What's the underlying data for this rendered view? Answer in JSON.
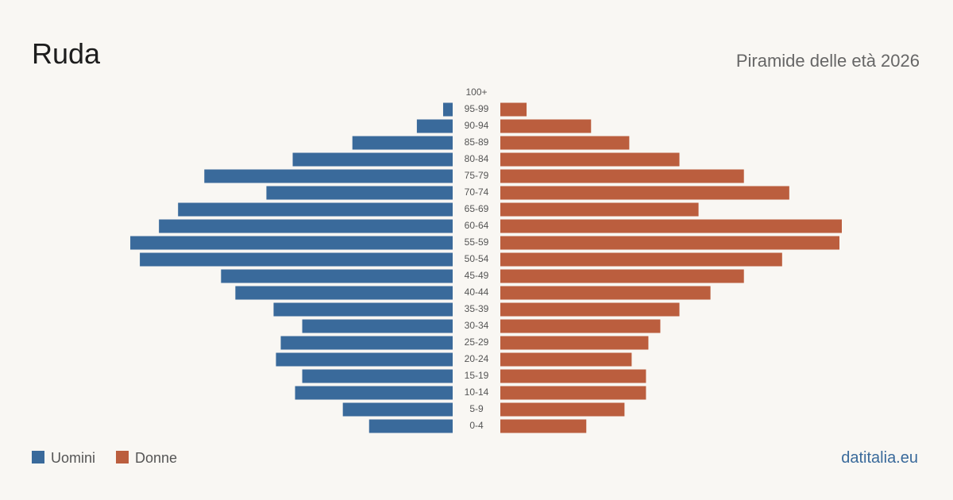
{
  "chart_data": {
    "type": "pyramid",
    "title": "Ruda",
    "subtitle": "Piramide delle età 2026",
    "source": "datitalia.eu",
    "categories": [
      "0-4",
      "5-9",
      "10-14",
      "15-19",
      "20-24",
      "25-29",
      "30-34",
      "35-39",
      "40-44",
      "45-49",
      "50-54",
      "55-59",
      "60-64",
      "65-69",
      "70-74",
      "75-79",
      "80-84",
      "85-89",
      "90-94",
      "95-99",
      "100+"
    ],
    "series": [
      {
        "name": "Uomini",
        "color": "#3a6a9b",
        "side": "left",
        "values": [
          35,
          46,
          66,
          63,
          74,
          72,
          63,
          75,
          91,
          97,
          131,
          135,
          123,
          115,
          78,
          104,
          67,
          42,
          15,
          4,
          0
        ]
      },
      {
        "name": "Donne",
        "color": "#bb5e3e",
        "side": "right",
        "values": [
          36,
          52,
          61,
          61,
          55,
          62,
          67,
          75,
          88,
          102,
          118,
          142,
          143,
          83,
          121,
          102,
          75,
          54,
          38,
          11,
          0
        ]
      }
    ]
  }
}
